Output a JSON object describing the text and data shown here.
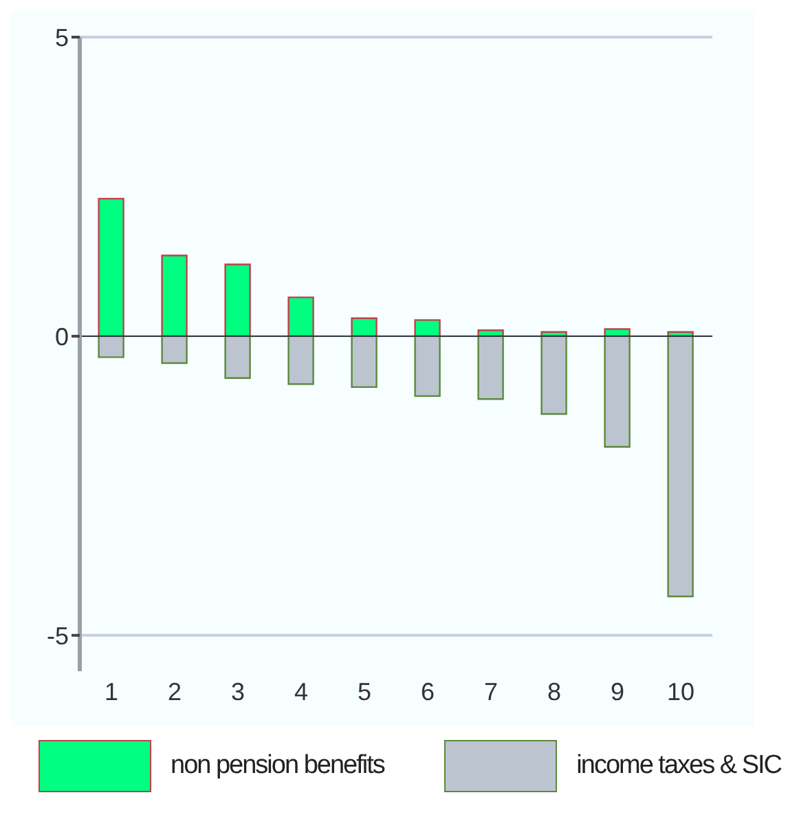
{
  "chart_data": {
    "type": "bar",
    "stacked": true,
    "categories": [
      "1",
      "2",
      "3",
      "4",
      "5",
      "6",
      "7",
      "8",
      "9",
      "10"
    ],
    "series": [
      {
        "name": "non pension benefits",
        "color": "#00ff80",
        "values": [
          2.3,
          1.35,
          1.2,
          0.65,
          0.3,
          0.27,
          0.1,
          0.07,
          0.12,
          0.07
        ]
      },
      {
        "name": "income taxes & SIC",
        "color": "#bcc4d0",
        "values": [
          -0.35,
          -0.45,
          -0.7,
          -0.8,
          -0.85,
          -1.0,
          -1.05,
          -1.3,
          -1.85,
          -4.35
        ]
      }
    ],
    "ylim": [
      -5.6,
      5
    ],
    "yticks": [
      -5,
      0,
      5
    ],
    "grid": "y",
    "legend": "bottom"
  }
}
